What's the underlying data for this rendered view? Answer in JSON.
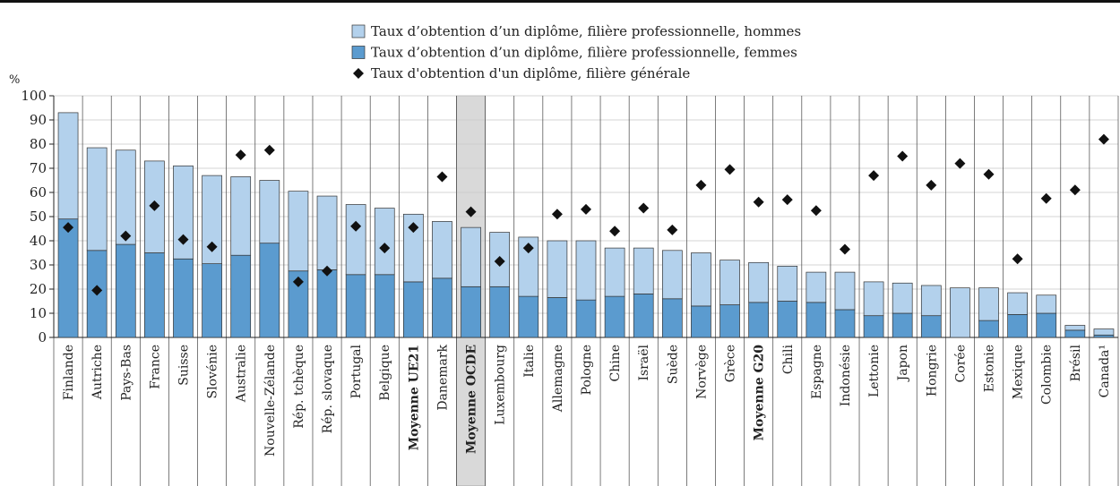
{
  "chart_data": {
    "type": "bar",
    "stacked": true,
    "y_axis_label": "%",
    "categories": [
      "Finlande",
      "Autriche",
      "Pays-Bas",
      "France",
      "Suisse",
      "Slovénie",
      "Australie",
      "Nouvelle-Zélande",
      "Rép. tchèque",
      "Rép. slovaque",
      "Portugal",
      "Belgique",
      "Moyenne UE21",
      "Danemark",
      "Moyenne OCDE",
      "Luxembourg",
      "Italie",
      "Allemagne",
      "Pologne",
      "Chine",
      "Israël",
      "Suède",
      "Norvège",
      "Grèce",
      "Moyenne G20",
      "Chili",
      "Espagne",
      "Indonésie",
      "Lettonie",
      "Japon",
      "Hongrie",
      "Corée",
      "Estonie",
      "Mexique",
      "Colombie",
      "Brésil",
      "Canada¹"
    ],
    "bold_categories": [
      12,
      14,
      24
    ],
    "highlight_category": 14,
    "series": [
      {
        "name": "Taux d’obtention d’un diplôme, filière professionnelle, femmes",
        "color": "#5b9bcf",
        "kind": "bar",
        "values": [
          49,
          36,
          38.5,
          35,
          32.5,
          30.5,
          34,
          39,
          27.5,
          28,
          26,
          26,
          23,
          24.5,
          21,
          21,
          17,
          16.5,
          15.5,
          17,
          18,
          16,
          13,
          13.5,
          14.5,
          15,
          14.5,
          11.5,
          9,
          10,
          9,
          null,
          7,
          9.5,
          10,
          3,
          1
        ]
      },
      {
        "name": "Taux d’obtention d’un diplôme, filière professionnelle, hommes",
        "color": "#b3d1ec",
        "kind": "bar",
        "values": [
          44,
          42.5,
          39,
          38,
          38.5,
          36.5,
          32.5,
          26,
          33,
          30.5,
          29,
          27.5,
          28,
          23.5,
          24.5,
          22.5,
          24.5,
          23.5,
          24.5,
          20,
          19,
          20,
          22,
          18.5,
          16.5,
          14.5,
          12.5,
          15.5,
          14,
          12.5,
          12.5,
          20.5,
          13.5,
          9,
          7.5,
          2,
          2.5
        ]
      },
      {
        "name": "Taux d'obtention d'un diplôme, filière générale",
        "color": "#111111",
        "kind": "diamond",
        "values": [
          45.5,
          19.5,
          42,
          54.5,
          40.5,
          37.5,
          75.5,
          77.5,
          23,
          27.5,
          46,
          37,
          45.5,
          66.5,
          52,
          31.5,
          37,
          51,
          53,
          44,
          53.5,
          44.5,
          63,
          69.5,
          56,
          57,
          52.5,
          36.5,
          67,
          75,
          63,
          72,
          67.5,
          32.5,
          57.5,
          61,
          82
        ]
      }
    ],
    "legend_order": [
      1,
      0,
      2
    ],
    "ylim": [
      0,
      100
    ],
    "yticks": [
      0,
      10,
      20,
      30,
      40,
      50,
      60,
      70,
      80,
      90,
      100
    ],
    "grid": true
  }
}
